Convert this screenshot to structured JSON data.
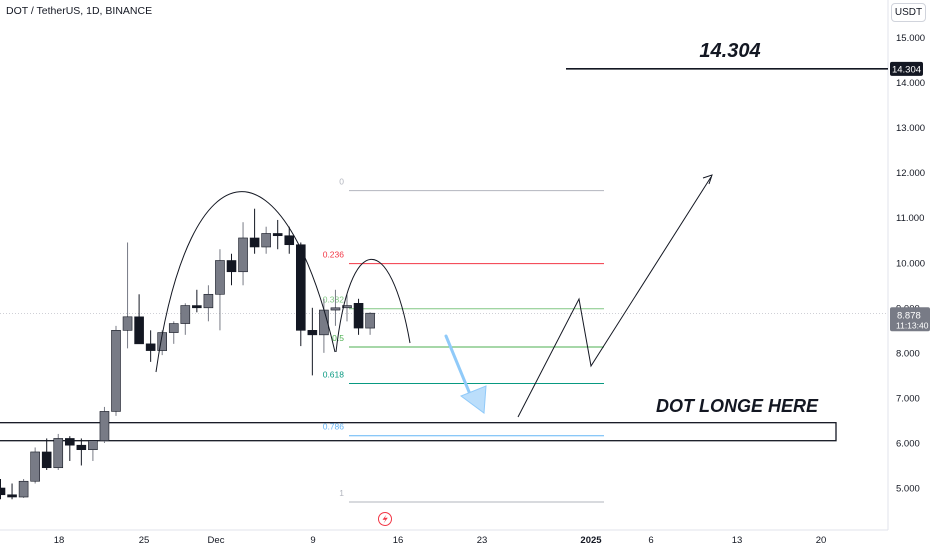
{
  "header": {
    "title": "DOT / TetherUS, 1D, BINANCE"
  },
  "currency_button": "USDT",
  "colors": {
    "up_candle": "#787b86",
    "down_candle": "#131722",
    "fib_0": "#b2b5be",
    "fib_236": "#f23645",
    "fib_382": "#81c784",
    "fib_5": "#4caf50",
    "fib_618": "#089981",
    "fib_786": "#64b5f6",
    "fib_1": "#b2b5be",
    "arrow_blue": "#90caf9",
    "price_tag": "#131722"
  },
  "annotations": {
    "target_label": "14.304",
    "target_tag": "14.304",
    "entry_label": "DOT LONGE HERE",
    "current_price": "8.878",
    "countdown": "11:13:40"
  },
  "icons": [
    "lightning-icon"
  ],
  "chart_data": {
    "type": "candlestick",
    "y_axis": {
      "ticks": [
        "15.000",
        "14.000",
        "13.000",
        "12.000",
        "11.000",
        "10.000",
        "9.000",
        "8.000",
        "7.000",
        "6.000",
        "5.000"
      ],
      "ylim": [
        4.7,
        15.3
      ]
    },
    "x_axis": {
      "ticks": [
        "18",
        "25",
        "Dec",
        "9",
        "16",
        "23",
        "2025",
        "6",
        "13",
        "20"
      ]
    },
    "candles": [
      {
        "o": 5.0,
        "h": 5.2,
        "l": 4.75,
        "c": 4.85
      },
      {
        "o": 4.85,
        "h": 5.1,
        "l": 4.75,
        "c": 4.8
      },
      {
        "o": 4.8,
        "h": 5.2,
        "l": 4.78,
        "c": 5.15
      },
      {
        "o": 5.15,
        "h": 5.9,
        "l": 5.1,
        "c": 5.8
      },
      {
        "o": 5.8,
        "h": 6.1,
        "l": 5.4,
        "c": 5.45
      },
      {
        "o": 5.45,
        "h": 6.2,
        "l": 5.4,
        "c": 6.1
      },
      {
        "o": 6.1,
        "h": 6.15,
        "l": 5.6,
        "c": 5.95
      },
      {
        "o": 5.95,
        "h": 6.1,
        "l": 5.5,
        "c": 5.85
      },
      {
        "o": 5.85,
        "h": 6.05,
        "l": 5.6,
        "c": 6.05
      },
      {
        "o": 6.05,
        "h": 6.8,
        "l": 6.0,
        "c": 6.7
      },
      {
        "o": 6.7,
        "h": 8.6,
        "l": 6.6,
        "c": 8.5
      },
      {
        "o": 8.5,
        "h": 10.45,
        "l": 8.1,
        "c": 8.8
      },
      {
        "o": 8.8,
        "h": 9.3,
        "l": 8.2,
        "c": 8.2
      },
      {
        "o": 8.2,
        "h": 8.5,
        "l": 7.8,
        "c": 8.05
      },
      {
        "o": 8.05,
        "h": 8.5,
        "l": 7.95,
        "c": 8.45
      },
      {
        "o": 8.45,
        "h": 8.7,
        "l": 8.2,
        "c": 8.65
      },
      {
        "o": 8.65,
        "h": 9.1,
        "l": 8.4,
        "c": 9.05
      },
      {
        "o": 9.05,
        "h": 9.4,
        "l": 8.9,
        "c": 9.0
      },
      {
        "o": 9.0,
        "h": 9.5,
        "l": 8.7,
        "c": 9.3
      },
      {
        "o": 9.3,
        "h": 10.3,
        "l": 8.5,
        "c": 10.05
      },
      {
        "o": 10.05,
        "h": 10.2,
        "l": 9.5,
        "c": 9.8
      },
      {
        "o": 9.8,
        "h": 10.9,
        "l": 9.5,
        "c": 10.55
      },
      {
        "o": 10.55,
        "h": 11.2,
        "l": 10.2,
        "c": 10.35
      },
      {
        "o": 10.35,
        "h": 10.8,
        "l": 10.2,
        "c": 10.65
      },
      {
        "o": 10.65,
        "h": 10.95,
        "l": 10.3,
        "c": 10.6
      },
      {
        "o": 10.6,
        "h": 10.8,
        "l": 10.2,
        "c": 10.4
      },
      {
        "o": 10.4,
        "h": 10.45,
        "l": 8.15,
        "c": 8.5
      },
      {
        "o": 8.5,
        "h": 9.0,
        "l": 7.5,
        "c": 8.4
      },
      {
        "o": 8.4,
        "h": 9.2,
        "l": 8.0,
        "c": 8.95
      },
      {
        "o": 8.95,
        "h": 9.4,
        "l": 8.6,
        "c": 9.0
      },
      {
        "o": 9.0,
        "h": 9.3,
        "l": 8.7,
        "c": 9.05
      },
      {
        "o": 9.1,
        "h": 9.2,
        "l": 8.4,
        "c": 8.55
      },
      {
        "o": 8.55,
        "h": 8.9,
        "l": 8.4,
        "c": 8.88
      }
    ],
    "fibonacci": [
      {
        "level": "0",
        "price": 11.6
      },
      {
        "level": "0.236",
        "price": 9.98
      },
      {
        "level": "0.382",
        "price": 8.98
      },
      {
        "level": "0.5",
        "price": 8.13
      },
      {
        "level": "0.618",
        "price": 7.32
      },
      {
        "level": "0.786",
        "price": 6.16
      },
      {
        "level": "1",
        "price": 4.69
      }
    ],
    "target_price": 14.304,
    "current_price": 8.878,
    "support_zone": [
      6.05,
      6.45
    ]
  }
}
